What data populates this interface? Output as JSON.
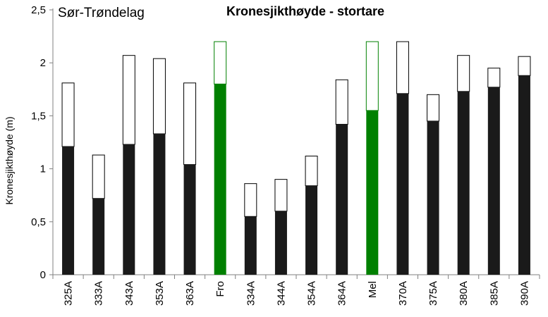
{
  "chart_data": {
    "type": "bar",
    "title": "Kronesjikthøyde - stortare",
    "region_label": "Sør-Trøndelag",
    "ylabel": "Kronesjikthøyde  (m)",
    "xlabel": "",
    "ylim": [
      0,
      2.5
    ],
    "yticks": [
      "0",
      "0,5",
      "1",
      "1,5",
      "2",
      "2,5"
    ],
    "yticks_values": [
      0,
      0.5,
      1,
      1.5,
      2,
      2.5
    ],
    "grid": false,
    "stacked": true,
    "categories": [
      "325A",
      "333A",
      "343A",
      "353A",
      "363A",
      "Fro",
      "334A",
      "344A",
      "354A",
      "364A",
      "Mel",
      "370A",
      "375A",
      "380A",
      "385A",
      "390A"
    ],
    "series": [
      {
        "values": [
          1.21,
          0.72,
          1.23,
          1.33,
          1.04,
          1.8,
          0.55,
          0.6,
          0.84,
          1.42,
          1.55,
          1.71,
          1.45,
          1.73,
          1.77,
          1.88
        ]
      },
      {
        "values": [
          0.6,
          0.41,
          0.84,
          0.71,
          0.77,
          0.4,
          0.31,
          0.3,
          0.28,
          0.42,
          0.65,
          0.49,
          0.25,
          0.34,
          0.18,
          0.18
        ]
      }
    ],
    "highlight_categories": [
      "Fro",
      "Mel"
    ],
    "colors": {
      "lower_default": "#1a1a1a",
      "lower_highlight": "#008000",
      "upper_fill": "#ffffff",
      "upper_stroke_default": "#000000",
      "upper_stroke_highlight": "#008000",
      "axis": "#808080"
    }
  }
}
